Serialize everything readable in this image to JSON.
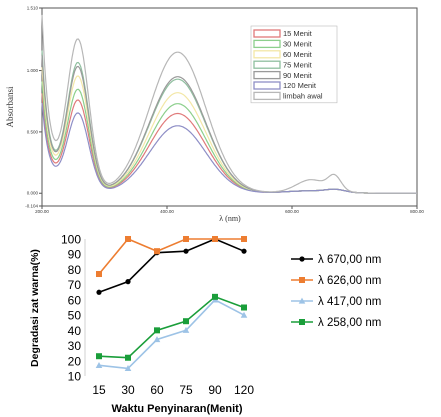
{
  "chart_data": [
    {
      "type": "line",
      "title": "",
      "xlabel": "λ (nm)",
      "ylabel": "Absorbansi",
      "xlim": [
        200,
        800
      ],
      "ylim": [
        -0.104,
        1.51
      ],
      "x_ticks": [
        200,
        400,
        600,
        800
      ],
      "x_tick_labels": [
        "200.00",
        "400.00",
        "600.00",
        "800.00"
      ],
      "y_ticks": [
        -0.104,
        0,
        0.5,
        1.0,
        1.51
      ],
      "y_tick_labels": [
        "-0.104",
        "0.000",
        "0.500",
        "1.000",
        "1.510"
      ],
      "grid": false,
      "legend_position": "top-right",
      "series": [
        {
          "name": "15 Menit",
          "color": "#e07a7a",
          "peak1": 0.7,
          "peak2": 0.65,
          "base": 0.42
        },
        {
          "name": "30 Menit",
          "color": "#8ccf8c",
          "peak1": 0.78,
          "peak2": 0.73,
          "base": 0.47
        },
        {
          "name": "60 Menit",
          "color": "#f3e7a6",
          "peak1": 0.88,
          "peak2": 0.82,
          "base": 0.53
        },
        {
          "name": "75 Menit",
          "color": "#8fbf9f",
          "peak1": 0.98,
          "peak2": 0.93,
          "base": 0.6
        },
        {
          "name": "90 Menit",
          "color": "#9a9a9a",
          "peak1": 0.95,
          "peak2": 0.95,
          "base": 0.58
        },
        {
          "name": "120 Menit",
          "color": "#8e8ec6",
          "peak1": 0.6,
          "peak2": 0.55,
          "base": 0.38
        },
        {
          "name": "limbah awal",
          "color": "#b7b7b7",
          "peak1": 1.15,
          "peak2": 1.15,
          "base": 0.75
        }
      ]
    },
    {
      "type": "line",
      "title": "",
      "xlabel": "Waktu Penyinaran(Menit)",
      "ylabel": "Degradasi  zat warna(%)",
      "categories": [
        15,
        30,
        60,
        75,
        90,
        120
      ],
      "ylim": [
        10,
        100
      ],
      "y_ticks": [
        10,
        20,
        30,
        40,
        50,
        60,
        70,
        80,
        90,
        100
      ],
      "grid": false,
      "legend_position": "right",
      "series": [
        {
          "name": "λ 670,00 nm",
          "color": "#000000",
          "marker": "circle",
          "values": [
            65,
            72,
            91,
            92,
            100,
            92
          ]
        },
        {
          "name": "λ 626,00 nm",
          "color": "#ed7d31",
          "marker": "square",
          "values": [
            77,
            100,
            92,
            100,
            100,
            100
          ]
        },
        {
          "name": "λ 417,00 nm",
          "color": "#9dc3e6",
          "marker": "triangle",
          "values": [
            17,
            15,
            34,
            40,
            60,
            50
          ]
        },
        {
          "name": "λ 258,00 nm",
          "color": "#1a9e3a",
          "marker": "square",
          "values": [
            23,
            22,
            40,
            46,
            62,
            55
          ]
        }
      ]
    }
  ]
}
